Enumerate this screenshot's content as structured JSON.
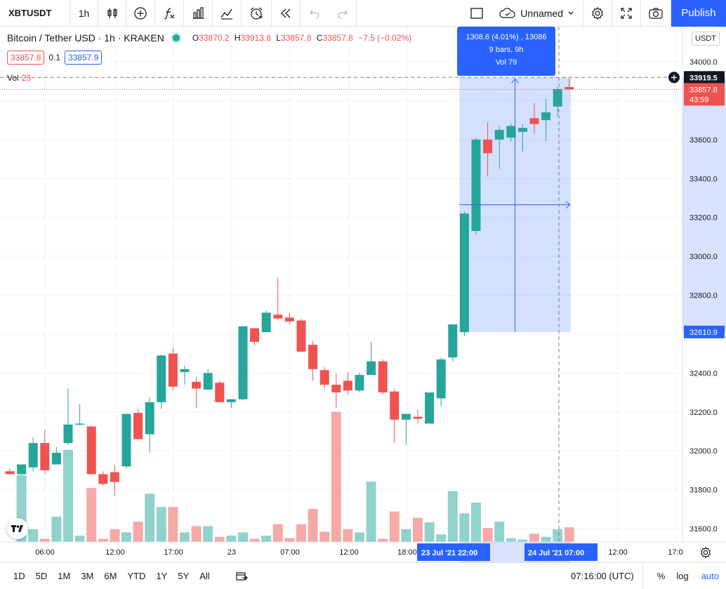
{
  "toolbar": {
    "symbol": "XBTUSDT",
    "interval": "1h",
    "layout_name": "Unnamed",
    "publish_label": "Publish"
  },
  "legend": {
    "title": "Bitcoin / Tether USD · 1h · KRAKEN",
    "o_label": "O",
    "o": "33870.2",
    "h_label": "H",
    "h": "33913.8",
    "l_label": "L",
    "l": "33857.8",
    "c_label": "C",
    "c": "33857.8",
    "change": "−7.5 (−0.02%)",
    "bid": "33857.8",
    "spread": "0.1",
    "ask": "33857.9",
    "vol_label": "Vol",
    "vol_value": "23"
  },
  "measure": {
    "line1": "1308.6 (4.01%) , 13086",
    "line2": "9 bars, 9h",
    "line3": "Vol 79"
  },
  "currency_badge": "USDT",
  "price_labels": {
    "crosshair": "33919.5",
    "last": "33857.8",
    "countdown": "43:59",
    "measure_low": "32610.9"
  },
  "time_labels": {
    "start": "23 Jul '21",
    "start_time": "22:00",
    "end": "24 Jul '21",
    "end_time": "07:00"
  },
  "bottombar": {
    "ranges": [
      "1D",
      "5D",
      "1M",
      "3M",
      "6M",
      "YTD",
      "1Y",
      "5Y",
      "All"
    ],
    "clock": "07:16:00 (UTC)",
    "percent": "%",
    "log": "log",
    "auto": "auto"
  },
  "colors": {
    "up": "#26a69a",
    "down": "#ef5350",
    "up_vol": "#92d2cc",
    "down_vol": "#f7a9a7",
    "accent": "#2962ff"
  },
  "chart_data": {
    "type": "candlestick",
    "y_axis_ticks": [
      34000,
      33800,
      33600,
      33400,
      33200,
      33000,
      32800,
      32600,
      32400,
      32200,
      32000,
      31800,
      31600
    ],
    "x_axis_ticks": [
      "06:00",
      "12:00",
      "17:00",
      "23",
      "07:00",
      "12:00",
      "18:00",
      "12:00",
      "17:0"
    ],
    "ylim": [
      31530,
      34140
    ],
    "candles": [
      {
        "o": 31895,
        "h": 31910,
        "l": 31880,
        "c": 31880,
        "v": 0
      },
      {
        "o": 31880,
        "h": 31920,
        "l": 31875,
        "c": 31930,
        "v": 105
      },
      {
        "o": 31915,
        "h": 32070,
        "l": 31895,
        "c": 32040,
        "v": 20
      },
      {
        "o": 32040,
        "h": 32110,
        "l": 31880,
        "c": 31900,
        "v": 5
      },
      {
        "o": 31930,
        "h": 32020,
        "l": 31940,
        "c": 31990,
        "v": 40
      },
      {
        "o": 32040,
        "h": 32320,
        "l": 32030,
        "c": 32135,
        "v": 145
      },
      {
        "o": 32140,
        "h": 32240,
        "l": 32130,
        "c": 32140,
        "v": 10
      },
      {
        "o": 32125,
        "h": 32130,
        "l": 31880,
        "c": 31880,
        "v": 85
      },
      {
        "o": 31880,
        "h": 31895,
        "l": 31820,
        "c": 31830,
        "v": 5
      },
      {
        "o": 31890,
        "h": 31925,
        "l": 31770,
        "c": 31840,
        "v": 20
      },
      {
        "o": 31920,
        "h": 32190,
        "l": 31910,
        "c": 32190,
        "v": 15
      },
      {
        "o": 32195,
        "h": 32215,
        "l": 32060,
        "c": 32060,
        "v": 32
      },
      {
        "o": 32085,
        "h": 32275,
        "l": 31990,
        "c": 32250,
        "v": 76
      },
      {
        "o": 32250,
        "h": 32495,
        "l": 32215,
        "c": 32490,
        "v": 55
      },
      {
        "o": 32500,
        "h": 32530,
        "l": 32310,
        "c": 32330,
        "v": 55
      },
      {
        "o": 32405,
        "h": 32440,
        "l": 32340,
        "c": 32420,
        "v": 15
      },
      {
        "o": 32355,
        "h": 32380,
        "l": 32220,
        "c": 32320,
        "v": 25
      },
      {
        "o": 32315,
        "h": 32420,
        "l": 32310,
        "c": 32400,
        "v": 25
      },
      {
        "o": 32350,
        "h": 32360,
        "l": 32250,
        "c": 32250,
        "v": 8
      },
      {
        "o": 32250,
        "h": 32265,
        "l": 32220,
        "c": 32265,
        "v": 10
      },
      {
        "o": 32265,
        "h": 32640,
        "l": 32260,
        "c": 32640,
        "v": 15
      },
      {
        "o": 32630,
        "h": 32630,
        "l": 32540,
        "c": 32560,
        "v": 5
      },
      {
        "o": 32610,
        "h": 32720,
        "l": 32610,
        "c": 32710,
        "v": 10
      },
      {
        "o": 32700,
        "h": 32890,
        "l": 32670,
        "c": 32680,
        "v": 28
      },
      {
        "o": 32685,
        "h": 32710,
        "l": 32650,
        "c": 32665,
        "v": 6
      },
      {
        "o": 32670,
        "h": 32680,
        "l": 32510,
        "c": 32510,
        "v": 28
      },
      {
        "o": 32545,
        "h": 32565,
        "l": 32360,
        "c": 32420,
        "v": 52
      },
      {
        "o": 32415,
        "h": 32430,
        "l": 32320,
        "c": 32340,
        "v": 16
      },
      {
        "o": 32340,
        "h": 32400,
        "l": 32220,
        "c": 32300,
        "v": 205
      },
      {
        "o": 32360,
        "h": 32405,
        "l": 32290,
        "c": 32310,
        "v": 20
      },
      {
        "o": 32310,
        "h": 32400,
        "l": 32300,
        "c": 32390,
        "v": 15
      },
      {
        "o": 32390,
        "h": 32560,
        "l": 32390,
        "c": 32460,
        "v": 95
      },
      {
        "o": 32460,
        "h": 32470,
        "l": 32290,
        "c": 32300,
        "v": 5
      },
      {
        "o": 32305,
        "h": 32320,
        "l": 32040,
        "c": 32160,
        "v": 48
      },
      {
        "o": 32160,
        "h": 32175,
        "l": 32030,
        "c": 32190,
        "v": 20
      },
      {
        "o": 32175,
        "h": 32210,
        "l": 32140,
        "c": 32165,
        "v": 38
      },
      {
        "o": 32140,
        "h": 32290,
        "l": 32140,
        "c": 32300,
        "v": 31
      },
      {
        "o": 32270,
        "h": 32480,
        "l": 32230,
        "c": 32470,
        "v": 12
      },
      {
        "o": 32480,
        "h": 32650,
        "l": 32460,
        "c": 32650,
        "v": 80
      },
      {
        "o": 32610,
        "h": 33230,
        "l": 32590,
        "c": 33220,
        "v": 45
      },
      {
        "o": 33130,
        "h": 33610,
        "l": 33110,
        "c": 33600,
        "v": 62
      },
      {
        "o": 33600,
        "h": 33690,
        "l": 33410,
        "c": 33530,
        "v": 22
      },
      {
        "o": 33600,
        "h": 33670,
        "l": 33450,
        "c": 33650,
        "v": 32
      },
      {
        "o": 33610,
        "h": 33680,
        "l": 33590,
        "c": 33670,
        "v": 6
      },
      {
        "o": 33640,
        "h": 33680,
        "l": 33540,
        "c": 33660,
        "v": 4
      },
      {
        "o": 33710,
        "h": 33790,
        "l": 33630,
        "c": 33680,
        "v": 13
      },
      {
        "o": 33700,
        "h": 33810,
        "l": 33590,
        "c": 33740,
        "v": 8
      },
      {
        "o": 33770,
        "h": 33870,
        "l": 33720,
        "c": 33860,
        "v": 20
      },
      {
        "o": 33870,
        "h": 33914,
        "l": 33858,
        "c": 33858,
        "v": 23
      }
    ]
  }
}
